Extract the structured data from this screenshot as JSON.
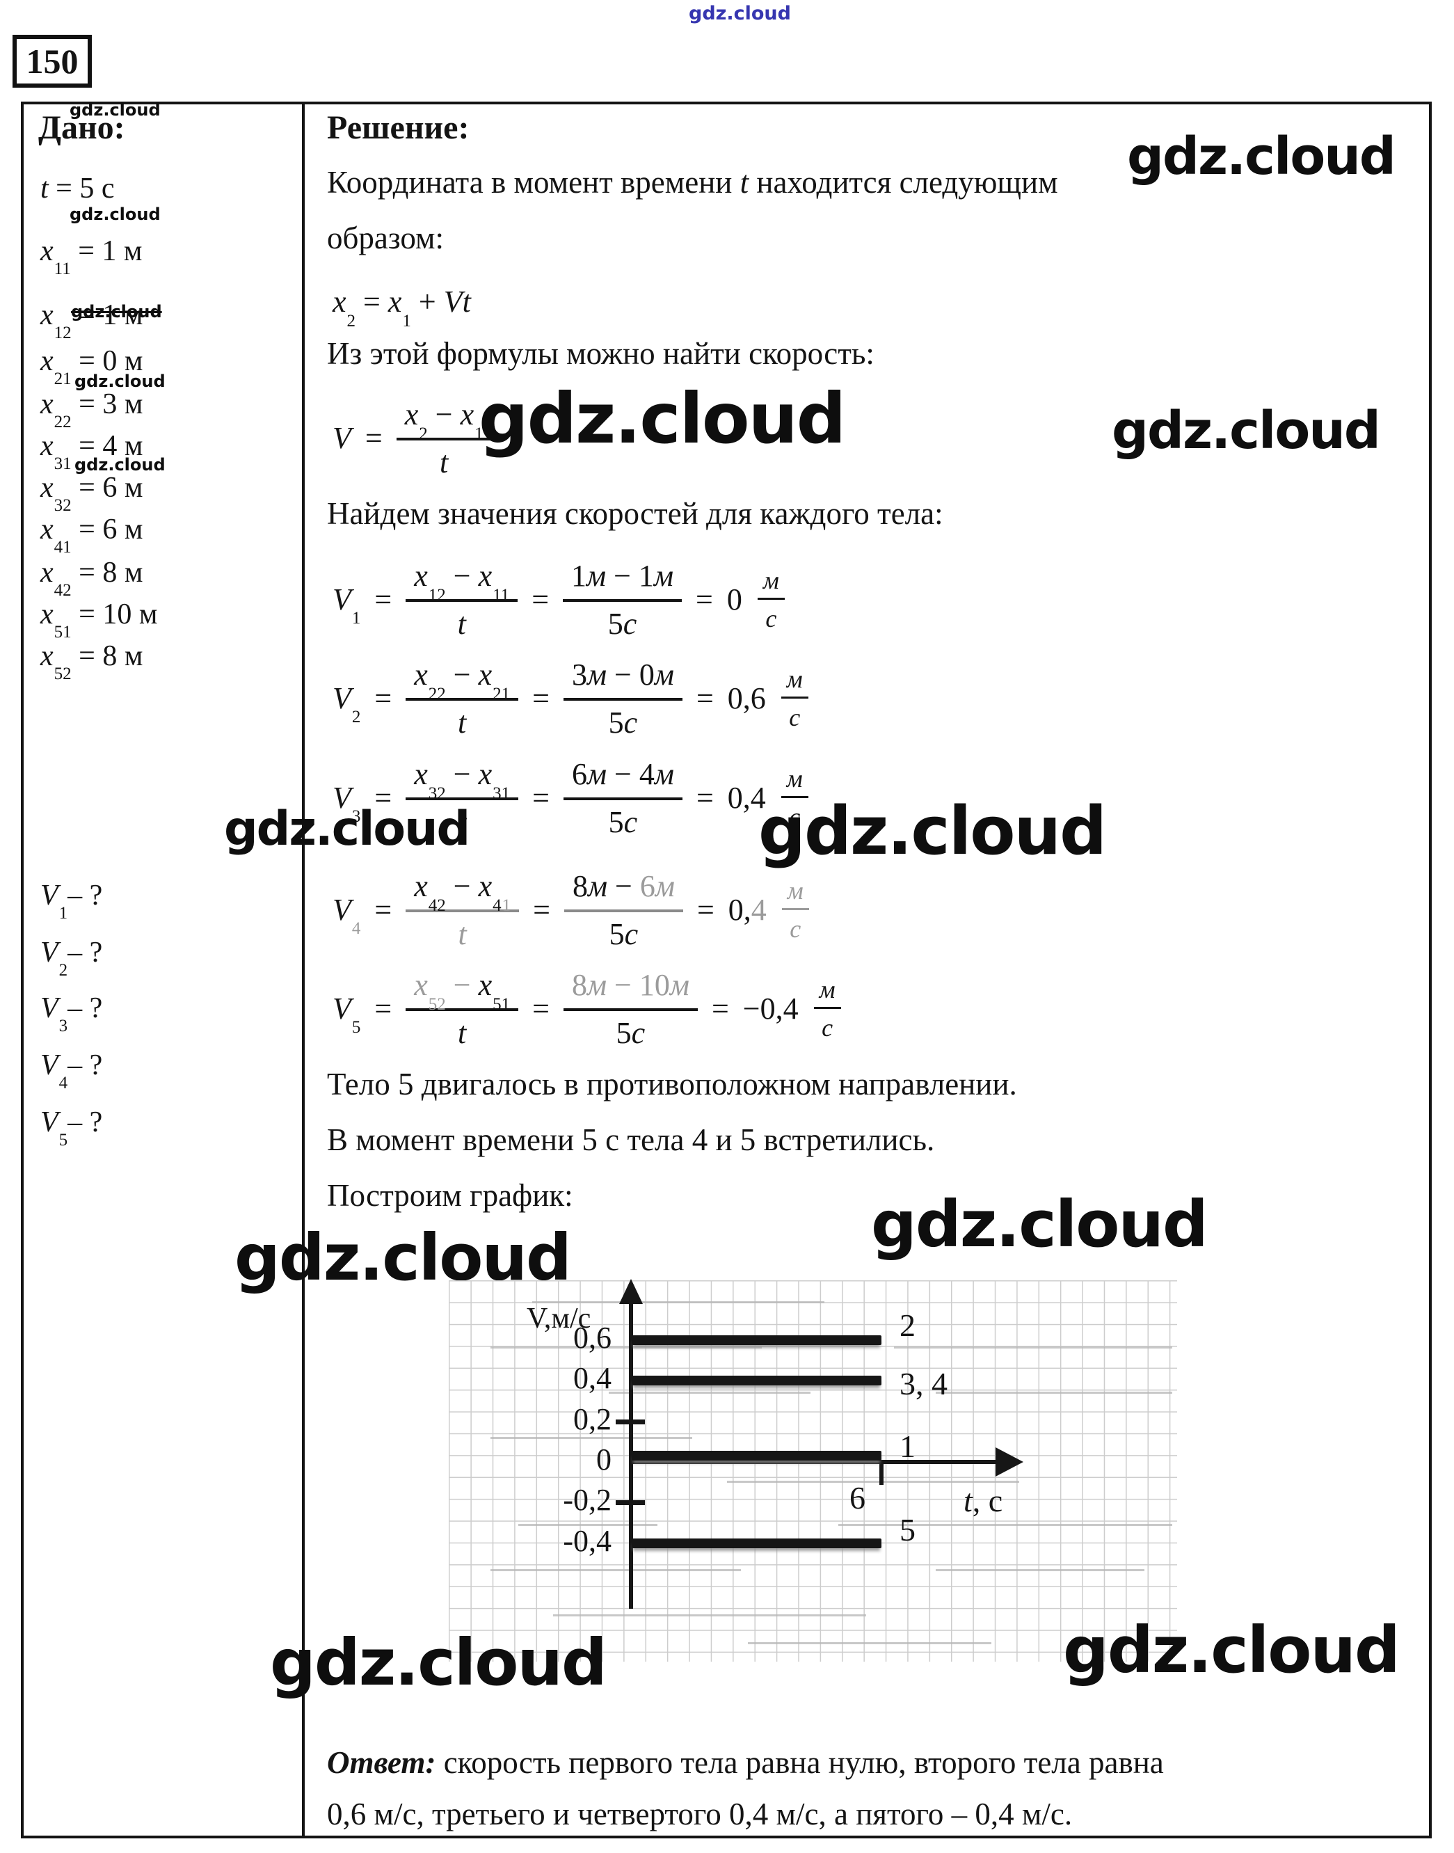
{
  "watermark": {
    "text": "gdz.cloud",
    "blue_color": "#3636b0"
  },
  "problem": {
    "number": "150"
  },
  "given": {
    "title": "Дано:",
    "items": [
      {
        "html": "<i>t</i> = 5 с"
      },
      {
        "html": "<i>x</i><sub>11</sub> = 1 м"
      },
      {
        "html": "<i>x</i><sub>12</sub> = 1 м"
      },
      {
        "html": "<i>x</i><sub>21</sub> = 0 м"
      },
      {
        "html": "<i>x</i><sub>22</sub> = 3 м"
      },
      {
        "html": "<i>x</i><sub>31</sub> = 4 м"
      },
      {
        "html": "<i>x</i><sub>32</sub> = 6 м"
      },
      {
        "html": "<i>x</i><sub>41</sub> = 6 м"
      },
      {
        "html": "<i>x</i><sub>42</sub> = 8 м"
      },
      {
        "html": "<i>x</i><sub>51</sub> = 10 м"
      },
      {
        "html": "<i>x</i><sub>52</sub> = 8 м"
      }
    ],
    "unknowns": [
      {
        "html": "<i>V</i><sub>1</sub>– ?"
      },
      {
        "html": "<i>V</i><sub>2</sub>– ?"
      },
      {
        "html": "<i>V</i><sub>3</sub>– ?"
      },
      {
        "html": "<i>V</i><sub>4</sub>– ?"
      },
      {
        "html": "<i>V</i><sub>5</sub>– ?"
      }
    ]
  },
  "solution": {
    "title": "Решение:",
    "para1_line1_html": "Координата в момент времени <i>t</i> находится следующим",
    "para1_line2": "образом:",
    "coord_formula_html": "<i>x</i><sub>2</sub> = <i>x</i><sub>1</sub> + <i>Vt</i>",
    "para2": "Из этой формулы можно найти скорость:",
    "para3": "Найдем значения скоростей для каждого тела:",
    "equations": [
      {
        "lhs_html": "<i>V</i>",
        "num1_html": "<i>x</i><sub>2</sub> − <i>x</i><sub>1</sub>",
        "den1_html": "<i>t</i>"
      },
      {
        "lhs_html": "<i>V</i><sub>1</sub>",
        "num1_html": "<i>x</i><sub>12</sub> − <i>x</i><sub>11</sub>",
        "den1_html": "<i>t</i>",
        "num2_html": "1<i>м</i> − 1<i>м</i>",
        "den2_html": "5<i>с</i>",
        "result_html": "0",
        "unit_num": "м",
        "unit_den": "с"
      },
      {
        "lhs_html": "<i>V</i><sub>2</sub>",
        "num1_html": "<i>x</i><sub>22</sub> − <i>x</i><sub>21</sub>",
        "den1_html": "<i>t</i>",
        "num2_html": "3<i>м</i> − 0<i>м</i>",
        "den2_html": "5<i>с</i>",
        "result_html": "0,6",
        "unit_num": "м",
        "unit_den": "с"
      },
      {
        "lhs_html": "<i>V</i><sub>3</sub>",
        "num1_html": "<i>x</i><sub>32</sub> − <i>x</i><sub>31</sub>",
        "den1_html": "<i>t</i>",
        "num2_html": "6<i>м</i> − 4<i>м</i>",
        "den2_html": "5<i>с</i>",
        "result_html": "0,4",
        "unit_num": "м",
        "unit_den": "с"
      },
      {
        "lhs_html": "<i>V</i><sub class='fade'>4</sub>",
        "num1_html": "<i>x</i><sub>42</sub> − <i>x</i><sub>4</sub><sub class='fade'>1</sub>",
        "den1_html": "<span class='fade'><i>t</i></span>",
        "num2_html": "8<i>м</i> − <span class='fade'>6<i>м</i></span>",
        "den2_html": "5<i>с</i>",
        "result_html": "0,<span class='fade'>4</span>",
        "unit_num": "м",
        "unit_den": "с",
        "worn": true,
        "unit_fade": true
      },
      {
        "lhs_html": "<i>V</i><sub>5</sub>",
        "num1_html": "<span class='fade'><i>x</i><sub>52</sub> −</span> <i>x</i><sub>51</sub>",
        "den1_html": "<i>t</i>",
        "num2_html": "<span class='fade'>8<i>м</i> − 10<i>м</i></span>",
        "den2_html": "5<i>с</i>",
        "result_html": "−0,4",
        "unit_num": "м",
        "unit_den": "с"
      }
    ],
    "para4": "Тело 5 двигалось в противоположном направлении.",
    "para5": "В момент времени 5 с тела 4 и 5 встретились.",
    "para6": "Построим график:"
  },
  "chart_data": {
    "type": "line",
    "title": "",
    "xlabel": "t, c",
    "xlabel_html": "<i>t</i>, c",
    "ylabel": "V,м/с",
    "x_range": [
      0,
      7.5
    ],
    "y_range": [
      -0.75,
      0.85
    ],
    "x_tick_labels": [
      "6"
    ],
    "grid": true,
    "legend_position": "labels at right end of each line",
    "yticks": [
      {
        "v": 0.6,
        "label": "0,6"
      },
      {
        "v": 0.4,
        "label": "0,4"
      },
      {
        "v": 0.2,
        "label": "0,2"
      },
      {
        "v": 0,
        "label": "0"
      },
      {
        "v": -0.2,
        "label": "-0,2"
      },
      {
        "v": -0.4,
        "label": "-0,4"
      }
    ],
    "series": [
      {
        "name": "2",
        "value": 0.6,
        "t": [
          0,
          6
        ]
      },
      {
        "name": "3, 4",
        "value": 0.4,
        "t": [
          0,
          6
        ]
      },
      {
        "name": "1",
        "value": 0,
        "t": [
          0,
          6
        ]
      },
      {
        "name": "5",
        "value": -0.4,
        "t": [
          0,
          6
        ]
      }
    ]
  },
  "answer": {
    "label": "Ответ:",
    "line1": "скорость первого тела равна нулю, второго тела равна",
    "line2": "0,6 м/с, третьего и четвертого 0,4 м/с, а пятого – 0,4 м/с.",
    "full": "Ответ: скорость первого тела равна нулю, второго тела равна 0,6 м/с, третьего и четвертого 0,4 м/с, а пятого – 0,4 м/с."
  }
}
